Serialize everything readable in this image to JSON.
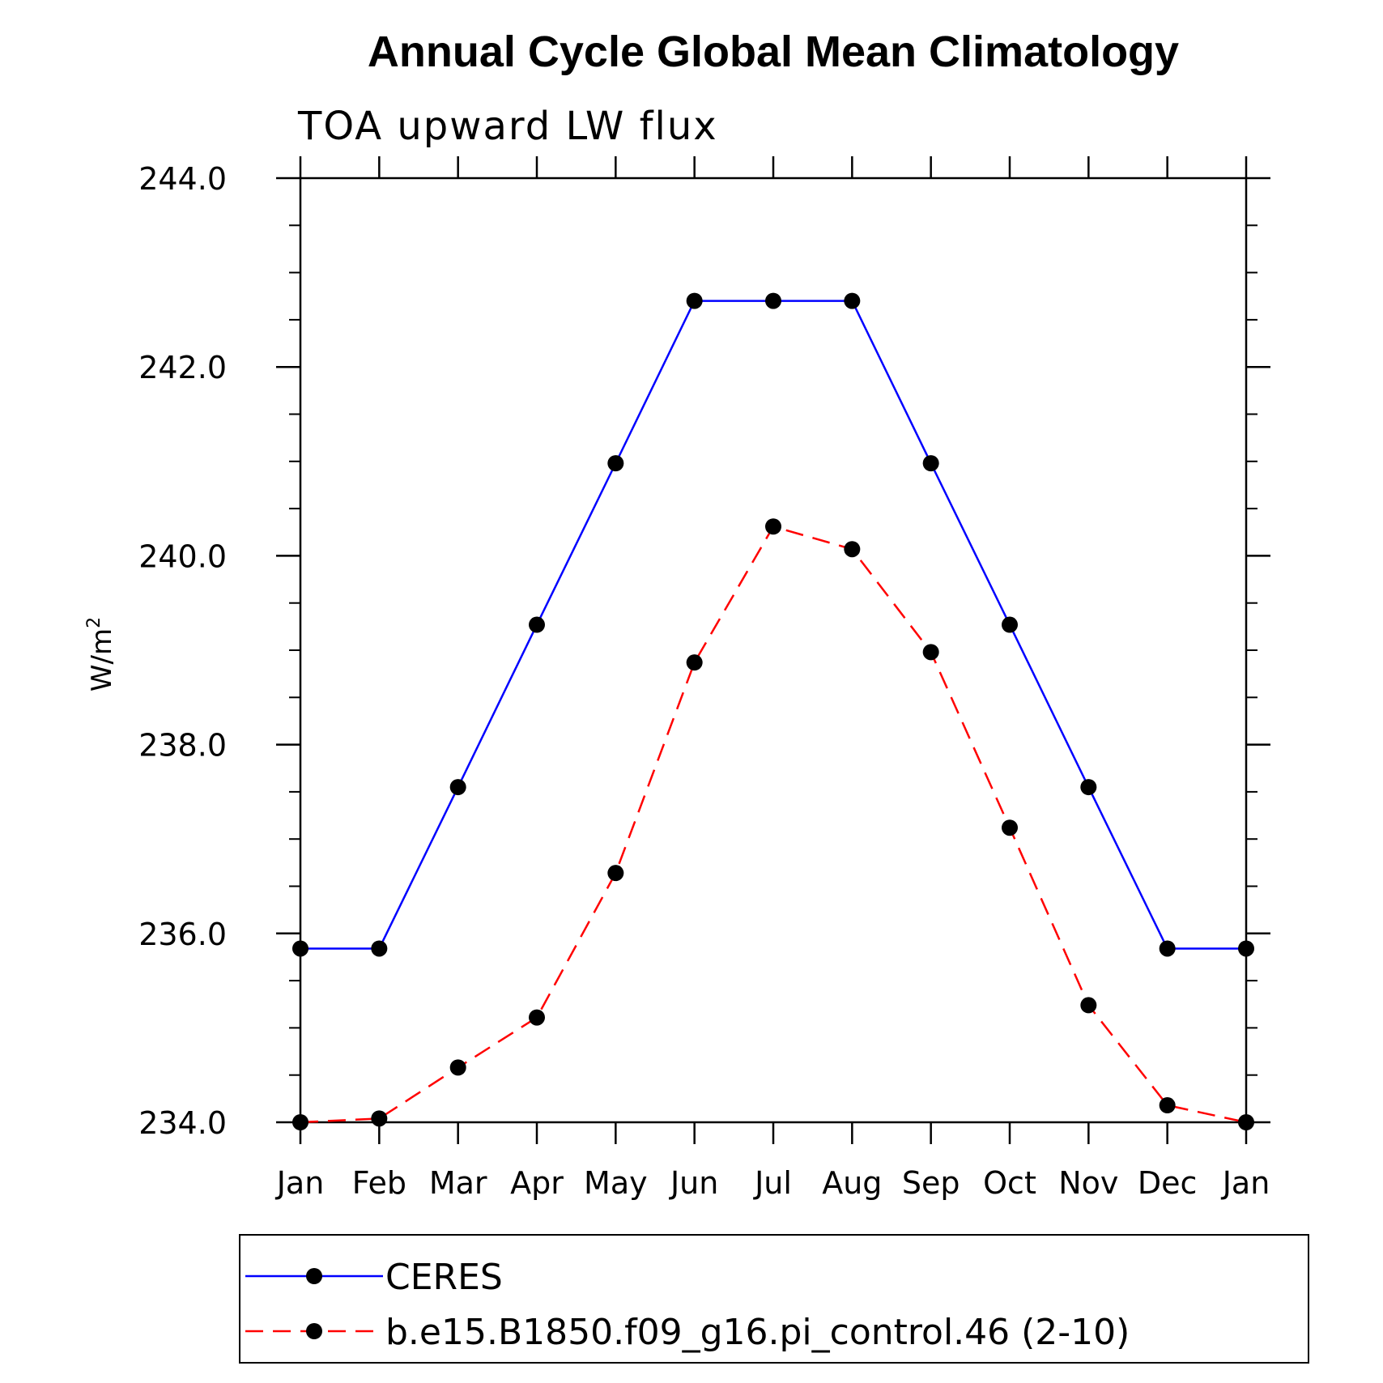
{
  "chart_data": {
    "type": "line",
    "title": "Annual Cycle Global Mean Climatology",
    "subtitle": "TOA upward LW flux",
    "xlabel": "",
    "ylabel": "W/m",
    "ylabel_superscript": "2",
    "categories": [
      "Jan",
      "Feb",
      "Mar",
      "Apr",
      "May",
      "Jun",
      "Jul",
      "Aug",
      "Sep",
      "Oct",
      "Nov",
      "Dec",
      "Jan"
    ],
    "ylim": [
      234.0,
      244.0
    ],
    "yticks": [
      "234.0",
      "236.0",
      "238.0",
      "240.0",
      "242.0",
      "244.0"
    ],
    "series": [
      {
        "name": "CERES",
        "color": "#0000ff",
        "dash": "solid",
        "values": [
          235.84,
          235.84,
          237.55,
          239.27,
          240.98,
          242.7,
          242.7,
          242.7,
          240.98,
          239.27,
          237.55,
          235.84,
          235.84
        ]
      },
      {
        "name": "b.e15.B1850.f09_g16.pi_control.46 (2-10)",
        "color": "#ff0000",
        "dash": "dashed",
        "values": [
          234.0,
          234.04,
          234.58,
          235.11,
          236.64,
          238.87,
          240.31,
          240.07,
          238.98,
          237.12,
          235.24,
          234.18,
          234.0
        ]
      }
    ],
    "marker_color": "#000000",
    "legend_position": "bottom"
  }
}
